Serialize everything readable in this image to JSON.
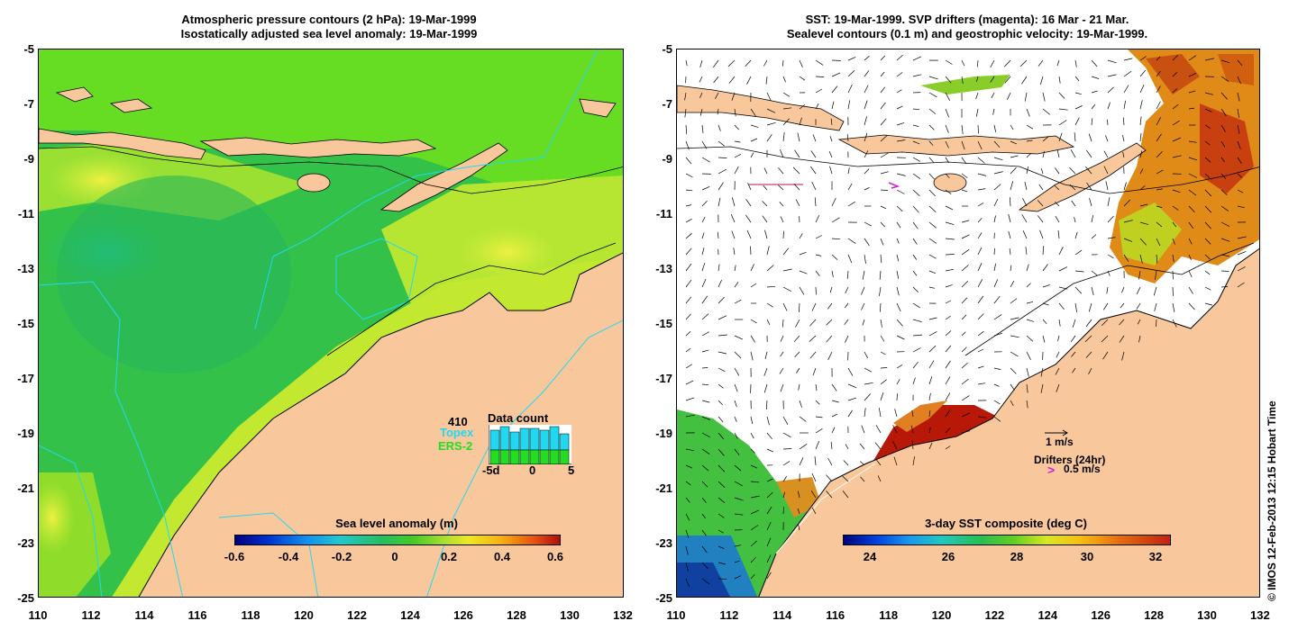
{
  "left": {
    "title_line1": "Atmospheric pressure contours (2 hPa): 19-Mar-1999",
    "title_line2": "Isostatically adjusted sea level anomaly: 19-Mar-1999",
    "colorbar": {
      "title": "Sea level anomaly (m)",
      "labels": [
        "-0.6",
        "-0.4",
        "-0.2",
        "0",
        "0.2",
        "0.4",
        "0.6"
      ]
    },
    "data_count": {
      "count": "410",
      "title": "Data count",
      "series1": "Topex",
      "series2": "ERS-2",
      "axis_labels": [
        "-5d",
        "0",
        "5"
      ],
      "colors": {
        "topex": "#22d8f0",
        "ers2": "#22dd22"
      }
    }
  },
  "right": {
    "title_line1": "SST: 19-Mar-1999. SVP drifters (magenta): 16 Mar - 21 Mar.",
    "title_line2": "Sealevel contours (0.1 m) and geostrophic velocity: 19-Mar-1999.",
    "colorbar": {
      "title": "3-day SST composite (deg C)",
      "labels": [
        "24",
        "26",
        "28",
        "30",
        "32"
      ]
    },
    "legend": {
      "velocity": "1 m/s",
      "drifters": "Drifters (24hr)",
      "drifter_speed": "0.5 m/s",
      "drifter_symbol": ">"
    }
  },
  "axes": {
    "y_labels": [
      "-5",
      "-7",
      "-9",
      "-11",
      "-13",
      "-15",
      "-17",
      "-19",
      "-21",
      "-23",
      "-25"
    ],
    "x_labels": [
      "110",
      "112",
      "114",
      "116",
      "118",
      "120",
      "122",
      "124",
      "126",
      "128",
      "130",
      "132"
    ]
  },
  "credit": "© IMOS 12-Feb-2013 12:15 Hobart Time",
  "colors": {
    "land": "#f8c89c",
    "ocean_green": "#33cc33",
    "warm": "#e07a10",
    "hot": "#b81808"
  }
}
